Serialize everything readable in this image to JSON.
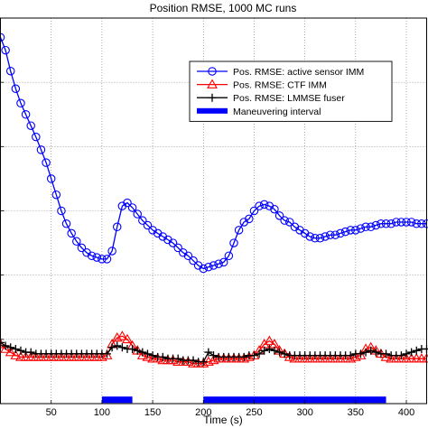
{
  "chart_data": {
    "type": "line",
    "title": "Position RMSE, 1000 MC runs",
    "xlabel": "Time (s)",
    "ylabel": "",
    "xlim": [
      0,
      420
    ],
    "ylim": [
      0,
      240
    ],
    "x_ticks": [
      50,
      100,
      150,
      200,
      250,
      300,
      350,
      400
    ],
    "grid": true,
    "legend_position": "upper-right",
    "series": [
      {
        "name": "Pos. RMSE: active sensor IMM",
        "color": "#0000ff",
        "marker": "circle",
        "x": [
          0,
          5,
          10,
          15,
          20,
          25,
          30,
          35,
          40,
          45,
          50,
          55,
          60,
          65,
          70,
          75,
          80,
          85,
          90,
          95,
          100,
          105,
          110,
          115,
          120,
          125,
          130,
          135,
          140,
          145,
          150,
          155,
          160,
          165,
          170,
          175,
          180,
          185,
          190,
          195,
          200,
          205,
          210,
          215,
          220,
          225,
          230,
          235,
          240,
          245,
          250,
          255,
          260,
          265,
          270,
          275,
          280,
          285,
          290,
          295,
          300,
          305,
          310,
          315,
          320,
          325,
          330,
          335,
          340,
          345,
          350,
          355,
          360,
          365,
          370,
          375,
          380,
          385,
          390,
          395,
          400,
          405,
          410,
          415,
          420
        ],
        "y": [
          228,
          220,
          207,
          196,
          187,
          180,
          173,
          166,
          158,
          150,
          140,
          130,
          120,
          112,
          106,
          101,
          97,
          94,
          92,
          91,
          90,
          90,
          95,
          110,
          123,
          125,
          122,
          118,
          114,
          111,
          108,
          106,
          104,
          102,
          100,
          97,
          94,
          92,
          89,
          86,
          84,
          85,
          86,
          87,
          88,
          92,
          100,
          108,
          113,
          115,
          120,
          123,
          124,
          123,
          121,
          117,
          114,
          113,
          110,
          108,
          106,
          104,
          103,
          103,
          104,
          105,
          105,
          106,
          107,
          108,
          108,
          109,
          110,
          110,
          111,
          112,
          112,
          112,
          113,
          113,
          113,
          113,
          112,
          112,
          112
        ]
      },
      {
        "name": "Pos. RMSE: CTF IMM",
        "color": "#ff0000",
        "marker": "triangle",
        "x": [
          0,
          5,
          10,
          15,
          20,
          25,
          30,
          35,
          40,
          45,
          50,
          55,
          60,
          65,
          70,
          75,
          80,
          85,
          90,
          95,
          100,
          105,
          110,
          115,
          120,
          125,
          130,
          135,
          140,
          145,
          150,
          155,
          160,
          165,
          170,
          175,
          180,
          185,
          190,
          195,
          200,
          205,
          210,
          215,
          220,
          225,
          230,
          235,
          240,
          245,
          250,
          255,
          260,
          265,
          270,
          275,
          280,
          285,
          290,
          295,
          300,
          305,
          310,
          315,
          320,
          325,
          330,
          335,
          340,
          345,
          350,
          355,
          360,
          365,
          370,
          375,
          380,
          385,
          390,
          395,
          400,
          405,
          410,
          415,
          420
        ],
        "y": [
          37,
          34,
          32,
          30,
          29,
          29,
          29,
          29,
          29,
          29,
          29,
          29,
          29,
          29,
          29,
          29,
          29,
          29,
          29,
          29,
          29,
          30,
          37,
          41,
          42,
          40,
          36,
          33,
          30,
          29,
          28,
          28,
          27,
          27,
          27,
          26,
          26,
          26,
          25,
          25,
          25,
          26,
          27,
          28,
          28,
          28,
          28,
          28,
          28,
          29,
          30,
          33,
          37,
          39,
          37,
          33,
          31,
          29,
          28,
          28,
          28,
          28,
          28,
          28,
          28,
          28,
          28,
          28,
          28,
          28,
          29,
          30,
          34,
          35,
          33,
          31,
          29,
          28,
          28,
          28,
          28,
          28,
          28,
          28,
          28
        ]
      },
      {
        "name": "Pos. RMSE: LMMSE fuser",
        "color": "#000000",
        "marker": "plus",
        "x": [
          0,
          5,
          10,
          15,
          20,
          25,
          30,
          35,
          40,
          45,
          50,
          55,
          60,
          65,
          70,
          75,
          80,
          85,
          90,
          95,
          100,
          105,
          110,
          115,
          120,
          125,
          130,
          135,
          140,
          145,
          150,
          155,
          160,
          165,
          170,
          175,
          180,
          185,
          190,
          195,
          200,
          205,
          210,
          215,
          220,
          225,
          230,
          235,
          240,
          245,
          250,
          255,
          260,
          265,
          270,
          275,
          280,
          285,
          290,
          295,
          300,
          305,
          310,
          315,
          320,
          325,
          330,
          335,
          340,
          345,
          350,
          355,
          360,
          365,
          370,
          375,
          380,
          385,
          390,
          395,
          400,
          405,
          410,
          415,
          420
        ],
        "y": [
          38,
          36,
          35,
          34,
          33,
          32,
          32,
          31,
          31,
          31,
          31,
          31,
          31,
          31,
          31,
          31,
          31,
          31,
          31,
          31,
          31,
          31,
          35,
          36,
          35,
          34,
          34,
          33,
          32,
          31,
          30,
          29,
          29,
          28,
          28,
          28,
          27,
          27,
          27,
          26,
          26,
          32,
          30,
          29,
          29,
          29,
          29,
          29,
          29,
          30,
          30,
          31,
          33,
          34,
          33,
          32,
          31,
          30,
          30,
          30,
          30,
          30,
          30,
          30,
          30,
          30,
          30,
          30,
          30,
          30,
          31,
          31,
          32,
          33,
          32,
          31,
          31,
          30,
          30,
          30,
          31,
          32,
          33,
          34,
          34
        ]
      }
    ],
    "maneuvering_intervals": [
      [
        100,
        130
      ],
      [
        200,
        380
      ]
    ],
    "maneuvering_label": "Maneuvering interval",
    "maneuvering_color": "#0000ff"
  }
}
